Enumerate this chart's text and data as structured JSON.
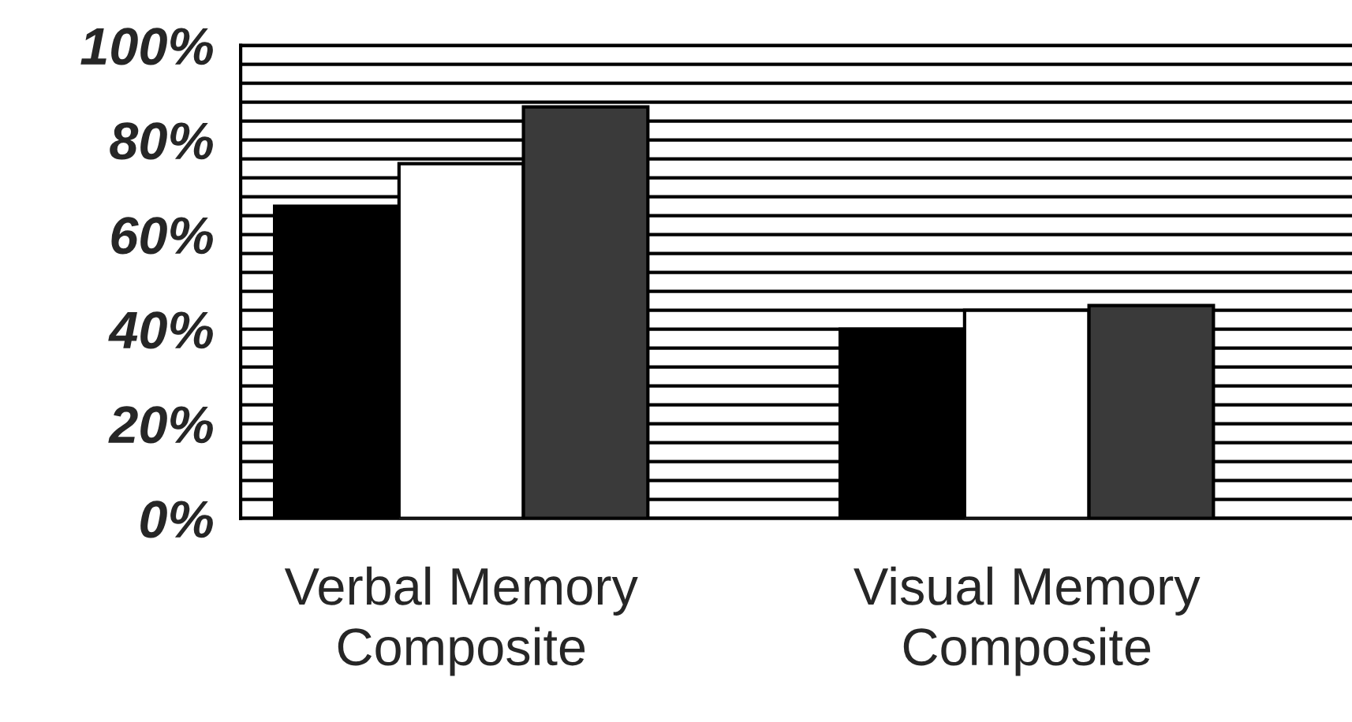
{
  "chart_data": {
    "type": "bar",
    "categories": [
      "Verbal Memory\nComposite",
      "Visual Memory\nComposite"
    ],
    "series": [
      {
        "color": "#000000",
        "values": [
          66,
          40
        ]
      },
      {
        "color": "#ffffff",
        "values": [
          75,
          44
        ]
      },
      {
        "color": "#3a3a3a",
        "values": [
          87,
          45
        ]
      }
    ],
    "ylim": [
      0,
      100
    ],
    "yticks": [
      {
        "value": 0,
        "label": "0%"
      },
      {
        "value": 4,
        "label": null
      },
      {
        "value": 8,
        "label": null
      },
      {
        "value": 12,
        "label": null
      },
      {
        "value": 16,
        "label": null
      },
      {
        "value": 20,
        "label": "20%"
      },
      {
        "value": 24,
        "label": null
      },
      {
        "value": 28,
        "label": null
      },
      {
        "value": 32,
        "label": null
      },
      {
        "value": 36,
        "label": null
      },
      {
        "value": 40,
        "label": "40%"
      },
      {
        "value": 44,
        "label": null
      },
      {
        "value": 48,
        "label": null
      },
      {
        "value": 52,
        "label": null
      },
      {
        "value": 56,
        "label": null
      },
      {
        "value": 60,
        "label": "60%"
      },
      {
        "value": 64,
        "label": null
      },
      {
        "value": 68,
        "label": null
      },
      {
        "value": 72,
        "label": null
      },
      {
        "value": 76,
        "label": null
      },
      {
        "value": 80,
        "label": "80%"
      },
      {
        "value": 84,
        "label": null
      },
      {
        "value": 88,
        "label": null
      },
      {
        "value": 92,
        "label": null
      },
      {
        "value": 96,
        "label": null
      },
      {
        "value": 100,
        "label": "100%"
      }
    ],
    "grid": "y",
    "legend": false
  }
}
